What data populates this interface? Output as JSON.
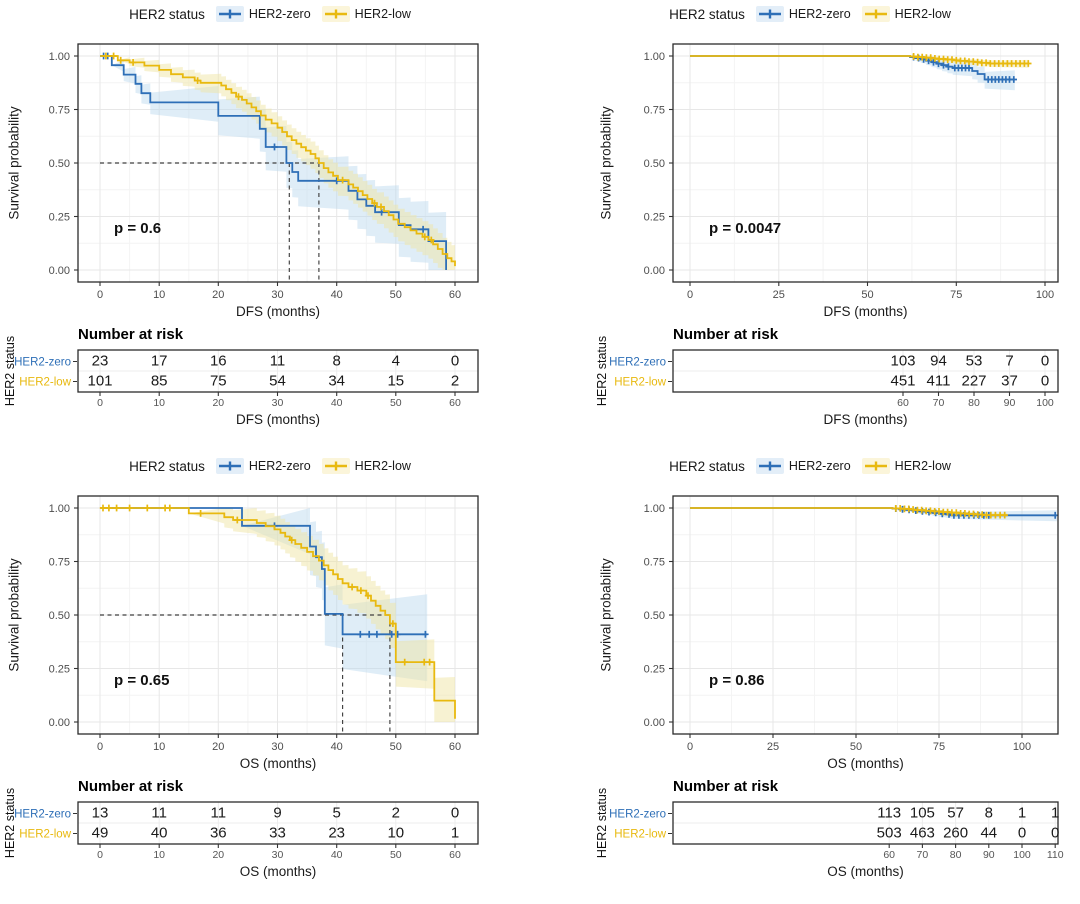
{
  "figure": {
    "legend_title": "HER2 status",
    "groups": [
      {
        "name": "HER2-zero",
        "color": "#2E6FB7",
        "tint": "#E3EEF8",
        "band": "#B9D7EE"
      },
      {
        "name": "HER2-low",
        "color": "#E8B90F",
        "tint": "#FBF5DA",
        "band": "#F0E6A6"
      }
    ]
  },
  "chart_data": [
    {
      "type": "line",
      "subtype": "kaplan-meier",
      "title": "",
      "xlabel": "DFS (months)",
      "ylabel": "Survival probability",
      "xlim": [
        0,
        63
      ],
      "ylim": [
        0,
        1
      ],
      "xticks": [
        0,
        10,
        20,
        30,
        40,
        50,
        60
      ],
      "yticks": [
        0,
        0.25,
        0.5,
        0.75,
        1
      ],
      "pvalue": "p = 0.6",
      "median": {
        "y": 0.5,
        "x": [
          32,
          37
        ]
      },
      "series": [
        {
          "name": "HER2-zero",
          "band": 0.16,
          "end": 58.5,
          "steps": [
            [
              2,
              0.957
            ],
            [
              4,
              0.913
            ],
            [
              6,
              0.87
            ],
            [
              7,
              0.826
            ],
            [
              8.5,
              0.783
            ],
            [
              20,
              0.72
            ],
            [
              27,
              0.66
            ],
            [
              28,
              0.575
            ],
            [
              31.5,
              0.5
            ],
            [
              32.5,
              0.458
            ],
            [
              33.5,
              0.417
            ],
            [
              42,
              0.37
            ],
            [
              43.5,
              0.33
            ],
            [
              45,
              0.3
            ],
            [
              46.5,
              0.27
            ],
            [
              50.5,
              0.21
            ],
            [
              52.5,
              0.19
            ],
            [
              55.5,
              0.135
            ],
            [
              58.5,
              0
            ]
          ],
          "censors": [
            0.6,
            1.3,
            29.5,
            40,
            47.6,
            54.6
          ]
        },
        {
          "name": "HER2-low",
          "band": 0.09,
          "end": 60,
          "steps": [
            [
              3,
              0.98
            ],
            [
              5,
              0.97
            ],
            [
              7.5,
              0.955
            ],
            [
              10,
              0.935
            ],
            [
              12,
              0.915
            ],
            [
              14,
              0.9
            ],
            [
              16,
              0.885
            ],
            [
              17,
              0.875
            ],
            [
              20.5,
              0.862
            ],
            [
              21.3,
              0.845
            ],
            [
              22.2,
              0.828
            ],
            [
              23,
              0.81
            ],
            [
              24,
              0.795
            ],
            [
              24.8,
              0.778
            ],
            [
              25.6,
              0.76
            ],
            [
              26.4,
              0.742
            ],
            [
              27.2,
              0.722
            ],
            [
              28,
              0.703
            ],
            [
              29,
              0.685
            ],
            [
              30,
              0.665
            ],
            [
              30.8,
              0.645
            ],
            [
              31.6,
              0.625
            ],
            [
              32.4,
              0.607
            ],
            [
              33.2,
              0.59
            ],
            [
              34,
              0.574
            ],
            [
              34.8,
              0.558
            ],
            [
              35.6,
              0.542
            ],
            [
              36.4,
              0.522
            ],
            [
              37,
              0.5
            ],
            [
              37.8,
              0.476
            ],
            [
              38.6,
              0.456
            ],
            [
              39.4,
              0.44
            ],
            [
              40.2,
              0.42
            ],
            [
              42,
              0.4
            ],
            [
              42.8,
              0.385
            ],
            [
              43.6,
              0.368
            ],
            [
              44.4,
              0.35
            ],
            [
              45.2,
              0.332
            ],
            [
              46,
              0.312
            ],
            [
              46.8,
              0.295
            ],
            [
              48,
              0.275
            ],
            [
              48.8,
              0.256
            ],
            [
              49.6,
              0.236
            ],
            [
              50.4,
              0.216
            ],
            [
              51.5,
              0.2
            ],
            [
              52.5,
              0.185
            ],
            [
              53.5,
              0.17
            ],
            [
              54.5,
              0.155
            ],
            [
              55.5,
              0.14
            ],
            [
              56.3,
              0.12
            ],
            [
              57.1,
              0.098
            ],
            [
              57.9,
              0.075
            ],
            [
              58.7,
              0.055
            ],
            [
              59.4,
              0.04
            ],
            [
              60,
              0.018
            ]
          ],
          "censors": [
            1,
            2.3,
            3.5,
            5.6,
            16.5,
            23.4,
            41,
            46.4,
            47.5,
            54.9,
            56
          ]
        }
      ],
      "risk_table": {
        "title": "Number at risk",
        "axis_label": "HER2 status",
        "times": [
          0,
          10,
          20,
          30,
          40,
          50,
          60
        ],
        "rows": [
          {
            "name": "HER2-zero",
            "values": [
              23,
              17,
              16,
              11,
              8,
              4,
              0
            ]
          },
          {
            "name": "HER2-low",
            "values": [
              101,
              85,
              75,
              54,
              34,
              15,
              2
            ]
          }
        ]
      }
    },
    {
      "type": "line",
      "subtype": "kaplan-meier",
      "title": "",
      "xlabel": "DFS (months)",
      "ylabel": "Survival probability",
      "xlim": [
        0,
        104
      ],
      "ylim": [
        0,
        1
      ],
      "xticks": [
        0,
        25,
        50,
        75,
        100
      ],
      "yticks": [
        0,
        0.25,
        0.5,
        0.75,
        1
      ],
      "pvalue": "p = 0.0047",
      "median": null,
      "series": [
        {
          "name": "HER2-zero",
          "band": 0.05,
          "end": 91.5,
          "steps": [
            [
              62,
              0.995
            ],
            [
              63.5,
              0.99
            ],
            [
              65,
              0.984
            ],
            [
              66.5,
              0.978
            ],
            [
              68,
              0.971
            ],
            [
              69.5,
              0.964
            ],
            [
              71,
              0.957
            ],
            [
              72.5,
              0.95
            ],
            [
              74,
              0.944
            ],
            [
              79.5,
              0.93
            ],
            [
              81,
              0.916
            ],
            [
              83,
              0.89
            ]
          ],
          "censors": [
            63,
            64.4,
            65.8,
            67.2,
            68.6,
            70,
            71.4,
            72.8,
            74.6,
            75.6,
            76.6,
            77.6,
            78.6,
            84,
            85,
            86,
            87,
            88,
            89,
            90,
            91.2
          ]
        },
        {
          "name": "HER2-low",
          "band": 0.02,
          "end": 95.5,
          "steps": [
            [
              62,
              0.998
            ],
            [
              64,
              0.995
            ],
            [
              66,
              0.992
            ],
            [
              68,
              0.989
            ],
            [
              70,
              0.986
            ],
            [
              72,
              0.983
            ],
            [
              74,
              0.98
            ],
            [
              76,
              0.977
            ],
            [
              78,
              0.974
            ],
            [
              80,
              0.971
            ],
            [
              82,
              0.968
            ],
            [
              84.5,
              0.965
            ]
          ],
          "censors": [
            63,
            64.2,
            65.4,
            66.6,
            67.8,
            69,
            70.2,
            71.4,
            72.6,
            73.8,
            75,
            76.2,
            77.4,
            78.6,
            79.8,
            81,
            82.2,
            83.4,
            84.6,
            85.8,
            87,
            88.2,
            89.4,
            90.6,
            91.8,
            93,
            94.2,
            95.3
          ]
        }
      ],
      "risk_table": {
        "title": "Number at risk",
        "axis_label": "HER2 status",
        "times": [
          60,
          70,
          80,
          90,
          100
        ],
        "rows": [
          {
            "name": "HER2-zero",
            "values": [
              103,
              94,
              53,
              7,
              0
            ]
          },
          {
            "name": "HER2-low",
            "values": [
              451,
              411,
              227,
              37,
              0
            ]
          }
        ]
      }
    },
    {
      "type": "line",
      "subtype": "kaplan-meier",
      "title": "",
      "xlabel": "OS (months)",
      "ylabel": "Survival probability",
      "xlim": [
        0,
        63
      ],
      "ylim": [
        0,
        1
      ],
      "xticks": [
        0,
        10,
        20,
        30,
        40,
        50,
        60
      ],
      "yticks": [
        0,
        0.25,
        0.5,
        0.75,
        1
      ],
      "pvalue": "p = 0.65",
      "median": {
        "y": 0.5,
        "x": [
          41,
          49
        ]
      },
      "series": [
        {
          "name": "HER2-zero",
          "band": 0.22,
          "end": 55.3,
          "steps": [
            [
              24,
              0.917
            ],
            [
              35.5,
              0.82
            ],
            [
              36.5,
              0.77
            ],
            [
              37.5,
              0.715
            ],
            [
              38,
              0.505
            ],
            [
              41,
              0.41
            ]
          ],
          "censors": [
            29.5,
            44,
            45.5,
            46.8,
            49.3,
            50.3,
            55
          ]
        },
        {
          "name": "HER2-low",
          "band": 0.13,
          "end": 60,
          "steps": [
            [
              15,
              0.975
            ],
            [
              21,
              0.957
            ],
            [
              22.5,
              0.944
            ],
            [
              26.5,
              0.93
            ],
            [
              28,
              0.915
            ],
            [
              29.5,
              0.9
            ],
            [
              30.5,
              0.884
            ],
            [
              31.3,
              0.867
            ],
            [
              32.1,
              0.85
            ],
            [
              33,
              0.832
            ],
            [
              34,
              0.814
            ],
            [
              35,
              0.795
            ],
            [
              36,
              0.775
            ],
            [
              37,
              0.754
            ],
            [
              37.8,
              0.732
            ],
            [
              38.6,
              0.71
            ],
            [
              39.4,
              0.69
            ],
            [
              40.2,
              0.668
            ],
            [
              41,
              0.648
            ],
            [
              42,
              0.631
            ],
            [
              43.5,
              0.614
            ],
            [
              45,
              0.59
            ],
            [
              45.8,
              0.567
            ],
            [
              46.6,
              0.543
            ],
            [
              47.4,
              0.52
            ],
            [
              48.2,
              0.5
            ],
            [
              49,
              0.46
            ],
            [
              50,
              0.28
            ],
            [
              56.5,
              0.1
            ],
            [
              60,
              0.015
            ]
          ],
          "censors": [
            0.5,
            1.5,
            2.8,
            5,
            8,
            11,
            11.8,
            17,
            23.2,
            32.4,
            42.6,
            44.1,
            45.3,
            49.5,
            51.5,
            54.8,
            55.7
          ]
        }
      ],
      "risk_table": {
        "title": "Number at risk",
        "axis_label": "HER2 status",
        "times": [
          0,
          10,
          20,
          30,
          40,
          50,
          60
        ],
        "rows": [
          {
            "name": "HER2-zero",
            "values": [
              13,
              11,
              11,
              9,
              5,
              2,
              0
            ]
          },
          {
            "name": "HER2-low",
            "values": [
              49,
              40,
              36,
              33,
              23,
              10,
              1
            ]
          }
        ]
      }
    },
    {
      "type": "line",
      "subtype": "kaplan-meier",
      "title": "",
      "xlabel": "OS (months)",
      "ylabel": "Survival probability",
      "xlim": [
        0,
        111
      ],
      "ylim": [
        0,
        1
      ],
      "xticks": [
        0,
        25,
        50,
        75,
        100
      ],
      "yticks": [
        0,
        0.25,
        0.5,
        0.75,
        1
      ],
      "pvalue": "p = 0.86",
      "median": null,
      "series": [
        {
          "name": "HER2-zero",
          "band": 0.028,
          "end": 110.5,
          "steps": [
            [
              61,
              0.997
            ],
            [
              63,
              0.994
            ],
            [
              65,
              0.991
            ],
            [
              67,
              0.988
            ],
            [
              69,
              0.984
            ],
            [
              71,
              0.981
            ],
            [
              73,
              0.977
            ],
            [
              75,
              0.973
            ],
            [
              77,
              0.97
            ],
            [
              78.5,
              0.966
            ]
          ],
          "censors": [
            62,
            64,
            66,
            68,
            70,
            72,
            74,
            76,
            78,
            79.5,
            81,
            82.5,
            84,
            85.5,
            87,
            88.5,
            90,
            110
          ]
        },
        {
          "name": "HER2-low",
          "band": 0.012,
          "end": 95.5,
          "steps": [
            [
              61,
              0.998
            ],
            [
              63.5,
              0.996
            ],
            [
              66,
              0.993
            ],
            [
              68.5,
              0.99
            ],
            [
              71,
              0.987
            ],
            [
              73.5,
              0.984
            ],
            [
              76,
              0.981
            ],
            [
              78.5,
              0.978
            ],
            [
              81,
              0.975
            ],
            [
              83.5,
              0.972
            ],
            [
              86,
              0.969
            ],
            [
              88.5,
              0.967
            ]
          ],
          "censors": [
            62,
            63.3,
            64.6,
            65.9,
            67.2,
            68.5,
            69.8,
            71.1,
            72.4,
            73.7,
            75,
            76.3,
            77.6,
            78.9,
            80.2,
            81.5,
            82.8,
            84.1,
            85.4,
            86.7,
            88,
            89.3,
            90.6,
            92,
            93.4,
            94.8
          ]
        }
      ],
      "risk_table": {
        "title": "Number at risk",
        "axis_label": "HER2 status",
        "times": [
          60,
          70,
          80,
          90,
          100,
          110
        ],
        "rows": [
          {
            "name": "HER2-zero",
            "values": [
              113,
              105,
              57,
              8,
              1,
              1
            ]
          },
          {
            "name": "HER2-low",
            "values": [
              503,
              463,
              260,
              44,
              0,
              0
            ]
          }
        ]
      }
    }
  ]
}
